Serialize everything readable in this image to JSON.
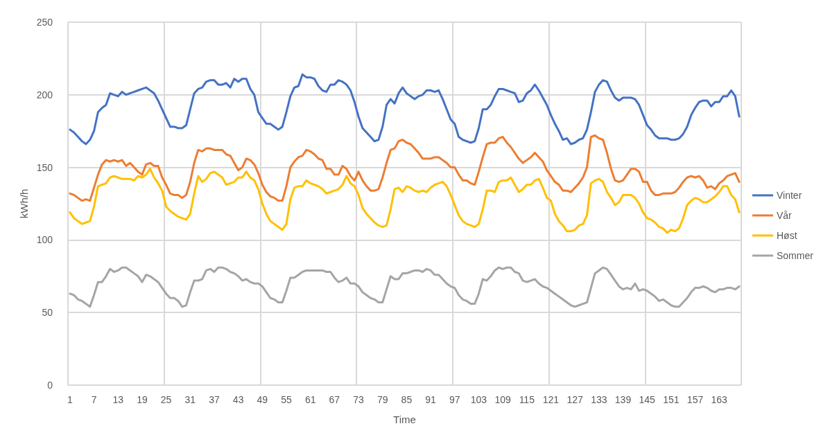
{
  "chart_data": {
    "type": "line",
    "xlabel": "Time",
    "ylabel": "kWh/h",
    "ylim": [
      0,
      250
    ],
    "yticks": [
      0,
      50,
      100,
      150,
      200,
      250
    ],
    "grid": true,
    "legend": "right",
    "marker": "none",
    "line_style": "solid",
    "categories": [
      "1",
      null,
      null,
      null,
      null,
      null,
      "7",
      null,
      null,
      null,
      null,
      null,
      "13",
      null,
      null,
      null,
      null,
      null,
      "19",
      null,
      null,
      null,
      null,
      null,
      "25",
      null,
      null,
      null,
      null,
      null,
      "31",
      null,
      null,
      null,
      null,
      null,
      "37",
      null,
      null,
      null,
      null,
      null,
      "43",
      null,
      null,
      null,
      null,
      null,
      "49",
      null,
      null,
      null,
      null,
      null,
      "55",
      null,
      null,
      null,
      null,
      null,
      "61",
      null,
      null,
      null,
      null,
      null,
      "67",
      null,
      null,
      null,
      null,
      null,
      "73",
      null,
      null,
      null,
      null,
      null,
      "79",
      null,
      null,
      null,
      null,
      null,
      "85",
      null,
      null,
      null,
      null,
      null,
      "91",
      null,
      null,
      null,
      null,
      null,
      "97",
      null,
      null,
      null,
      null,
      null,
      "103",
      null,
      null,
      null,
      null,
      null,
      "109",
      null,
      null,
      null,
      null,
      null,
      "115",
      null,
      null,
      null,
      null,
      null,
      "121",
      null,
      null,
      null,
      null,
      null,
      "127",
      null,
      null,
      null,
      null,
      null,
      "133",
      null,
      null,
      null,
      null,
      null,
      "139",
      null,
      null,
      null,
      null,
      null,
      "145",
      null,
      null,
      null,
      null,
      null,
      "151",
      null,
      null,
      null,
      null,
      null,
      "157",
      null,
      null,
      null,
      null,
      null,
      "163",
      null,
      null,
      null,
      null,
      null
    ],
    "series": [
      {
        "name": "Vinter",
        "color": "#4472c4",
        "values": [
          176,
          174,
          171,
          168,
          166,
          169,
          175,
          188,
          191,
          193,
          201,
          200,
          199,
          202,
          200,
          201,
          202,
          203,
          204,
          205,
          203,
          201,
          196,
          190,
          184,
          178,
          178,
          177,
          177,
          179,
          190,
          201,
          204,
          205,
          209,
          210,
          210,
          207,
          207,
          208,
          205,
          211,
          209,
          211,
          211,
          204,
          200,
          188,
          184,
          180,
          180,
          178,
          176,
          178,
          188,
          199,
          205,
          206,
          214,
          212,
          212,
          211,
          206,
          203,
          202,
          207,
          207,
          210,
          209,
          207,
          203,
          195,
          185,
          177,
          174,
          171,
          168,
          169,
          178,
          193,
          197,
          194,
          201,
          205,
          201,
          199,
          197,
          199,
          200,
          203,
          203,
          202,
          203,
          197,
          190,
          183,
          180,
          171,
          169,
          168,
          167,
          168,
          177,
          190,
          190,
          193,
          199,
          204,
          204,
          203,
          202,
          201,
          195,
          196,
          201,
          203,
          207,
          203,
          198,
          193,
          186,
          180,
          175,
          169,
          170,
          166,
          167,
          169,
          170,
          176,
          188,
          202,
          207,
          210,
          209,
          203,
          198,
          196,
          198,
          198,
          198,
          197,
          193,
          186,
          179,
          176,
          172,
          170,
          170,
          170,
          169,
          169,
          170,
          173,
          178,
          186,
          191,
          195,
          196,
          196,
          192,
          195,
          195,
          199,
          199,
          203,
          199,
          185
        ]
      },
      {
        "name": "Vår",
        "color": "#ed7d31",
        "values": [
          132,
          131,
          129,
          127,
          128,
          127,
          136,
          145,
          152,
          155,
          154,
          155,
          154,
          155,
          151,
          153,
          150,
          147,
          145,
          152,
          153,
          151,
          151,
          143,
          138,
          132,
          131,
          131,
          129,
          131,
          140,
          153,
          162,
          161,
          163,
          163,
          162,
          162,
          162,
          159,
          158,
          153,
          148,
          150,
          156,
          155,
          152,
          146,
          138,
          133,
          130,
          129,
          127,
          127,
          137,
          150,
          154,
          157,
          158,
          162,
          161,
          159,
          156,
          155,
          149,
          149,
          145,
          145,
          151,
          149,
          144,
          141,
          147,
          141,
          137,
          134,
          134,
          135,
          143,
          153,
          162,
          163,
          168,
          169,
          167,
          166,
          163,
          160,
          156,
          156,
          156,
          157,
          157,
          155,
          153,
          150,
          150,
          145,
          141,
          141,
          139,
          138,
          147,
          157,
          166,
          167,
          167,
          170,
          171,
          167,
          164,
          160,
          156,
          153,
          155,
          157,
          160,
          157,
          154,
          148,
          144,
          140,
          138,
          134,
          134,
          133,
          136,
          139,
          143,
          150,
          171,
          172,
          170,
          169,
          160,
          149,
          141,
          140,
          141,
          145,
          149,
          149,
          147,
          140,
          140,
          134,
          131,
          131,
          132,
          132,
          132,
          133,
          136,
          140,
          143,
          144,
          143,
          144,
          141,
          136,
          137,
          135,
          139,
          141,
          144,
          145,
          146,
          140
        ]
      },
      {
        "name": "Høst",
        "color": "#ffc000",
        "values": [
          119,
          115,
          113,
          111,
          112,
          113,
          123,
          137,
          138,
          139,
          143,
          144,
          143,
          142,
          142,
          142,
          141,
          144,
          143,
          145,
          149,
          143,
          139,
          134,
          123,
          120,
          118,
          116,
          115,
          114,
          118,
          132,
          144,
          140,
          142,
          146,
          147,
          145,
          143,
          138,
          139,
          140,
          143,
          143,
          147,
          143,
          141,
          135,
          125,
          118,
          113,
          111,
          109,
          107,
          111,
          128,
          136,
          137,
          137,
          141,
          139,
          138,
          137,
          135,
          132,
          133,
          134,
          135,
          138,
          144,
          139,
          137,
          131,
          122,
          118,
          115,
          112,
          110,
          109,
          110,
          121,
          135,
          136,
          133,
          137,
          136,
          134,
          133,
          134,
          133,
          136,
          138,
          139,
          140,
          137,
          131,
          124,
          117,
          113,
          111,
          110,
          109,
          111,
          121,
          134,
          134,
          133,
          140,
          141,
          141,
          143,
          138,
          133,
          135,
          138,
          138,
          141,
          142,
          136,
          129,
          127,
          118,
          113,
          110,
          106,
          106,
          107,
          110,
          111,
          117,
          139,
          141,
          142,
          140,
          133,
          129,
          124,
          126,
          131,
          131,
          131,
          129,
          125,
          119,
          115,
          114,
          112,
          109,
          108,
          105,
          107,
          106,
          108,
          115,
          124,
          127,
          129,
          128,
          126,
          126,
          128,
          130,
          133,
          137,
          137,
          131,
          128,
          119
        ]
      },
      {
        "name": "Sommer",
        "color": "#a5a5a5",
        "values": [
          63,
          62,
          59,
          58,
          56,
          54,
          62,
          71,
          71,
          75,
          80,
          78,
          79,
          81,
          81,
          79,
          77,
          75,
          71,
          76,
          75,
          73,
          71,
          67,
          63,
          60,
          60,
          58,
          54,
          55,
          64,
          72,
          72,
          73,
          79,
          80,
          78,
          81,
          81,
          80,
          78,
          77,
          75,
          72,
          73,
          71,
          70,
          70,
          68,
          64,
          60,
          59,
          57,
          57,
          65,
          74,
          74,
          76,
          78,
          79,
          79,
          79,
          79,
          79,
          78,
          78,
          74,
          71,
          72,
          74,
          70,
          70,
          68,
          64,
          62,
          60,
          59,
          57,
          57,
          66,
          75,
          73,
          73,
          77,
          77,
          78,
          79,
          79,
          78,
          80,
          79,
          76,
          76,
          73,
          70,
          68,
          67,
          62,
          59,
          58,
          56,
          56,
          63,
          73,
          72,
          75,
          79,
          81,
          80,
          81,
          81,
          78,
          77,
          72,
          71,
          72,
          73,
          70,
          68,
          67,
          65,
          63,
          61,
          59,
          57,
          55,
          54,
          55,
          56,
          57,
          67,
          77,
          79,
          81,
          80,
          76,
          72,
          68,
          66,
          67,
          66,
          70,
          65,
          66,
          65,
          63,
          61,
          58,
          59,
          57,
          55,
          54,
          54,
          57,
          60,
          64,
          67,
          67,
          68,
          67,
          65,
          64,
          66,
          66,
          67,
          67,
          66,
          68
        ]
      }
    ]
  }
}
